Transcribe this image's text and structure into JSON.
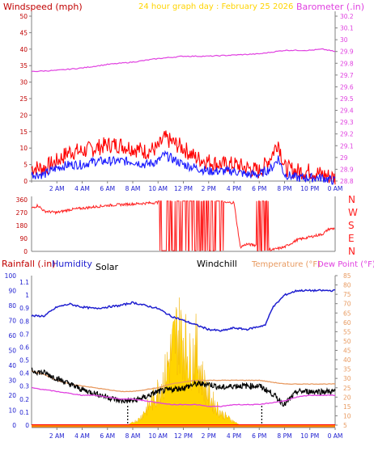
{
  "header": {
    "windspeed_label": "Windspeed (mph)",
    "title": "24 hour graph day : February 25 2026",
    "barometer_label": "Barometer (.in)"
  },
  "lower_header": {
    "rainfall_label": "Rainfall (.in)",
    "humidity_label": "Humidity",
    "solar_label": "Solar",
    "windchill_label": "Windchill",
    "temperature_label": "Temperature (°F)",
    "dewpoint_label": "Dew Point (°F)"
  },
  "colors": {
    "windspeed": "#ff0000",
    "windspeed_avg": "#1a1aff",
    "barometer": "#e040e0",
    "title": "#ffd400",
    "direction": "#ff2020",
    "rainfall": "#ff0000",
    "humidity": "#2020d0",
    "solar": "#ffd400",
    "windchill": "#000000",
    "temperature": "#e89a60",
    "dewpoint": "#e040e0",
    "axis": "#808080"
  },
  "chart_data": [
    {
      "type": "line",
      "panel": "wind",
      "x_ticks": [
        "2 AM",
        "4 AM",
        "6 AM",
        "8 AM",
        "10 AM",
        "12 PM",
        "2 PM",
        "4 PM",
        "6 PM",
        "8 PM",
        "10 PM",
        "0 AM"
      ],
      "y_left_ticks": [
        "0",
        "5",
        "10",
        "15",
        "20",
        "25",
        "30",
        "35",
        "40",
        "45",
        "50"
      ],
      "y_right_ticks": [
        "28.8",
        "28.9",
        "29",
        "29.1",
        "29.2",
        "29.3",
        "29.4",
        "29.5",
        "29.6",
        "29.7",
        "29.8",
        "29.9",
        "30",
        "30.1",
        "30.2"
      ],
      "ylim_left": [
        0,
        50
      ],
      "ylim_right": [
        28.8,
        30.2
      ],
      "xlim_hours": [
        0,
        24
      ],
      "series": [
        {
          "axis": "left",
          "color_key": "windspeed",
          "x": [
            0,
            1,
            2,
            3,
            4,
            5,
            6,
            7,
            8,
            9,
            10,
            10.5,
            11,
            12,
            13,
            14,
            15,
            16,
            17,
            18,
            18.5,
            19,
            19.5,
            20,
            21,
            22,
            23,
            24
          ],
          "y": [
            4,
            4,
            6,
            9,
            9,
            10,
            11,
            11,
            10,
            9,
            10,
            13,
            12,
            10,
            7,
            6,
            5,
            5,
            4,
            3,
            5,
            8,
            12,
            4,
            3,
            3,
            2,
            1
          ]
        },
        {
          "axis": "left",
          "color_key": "windspeed_avg",
          "x": [
            0,
            1,
            2,
            3,
            4,
            5,
            6,
            7,
            8,
            9,
            10,
            10.5,
            11,
            12,
            13,
            14,
            15,
            16,
            17,
            18,
            18.5,
            19,
            19.5,
            20,
            21,
            22,
            23,
            24
          ],
          "y": [
            2,
            2,
            4,
            5,
            5,
            6,
            6,
            6,
            6,
            5,
            6,
            8,
            7,
            5,
            4,
            3,
            3,
            3,
            2,
            2,
            3,
            4,
            7,
            2,
            1,
            1,
            1,
            0
          ]
        },
        {
          "axis": "right",
          "color_key": "barometer",
          "x": [
            0,
            2,
            4,
            6,
            8,
            10,
            12,
            14,
            16,
            18,
            20,
            22,
            23,
            24
          ],
          "y": [
            29.73,
            29.74,
            29.76,
            29.79,
            29.81,
            29.84,
            29.86,
            29.86,
            29.87,
            29.88,
            29.91,
            29.91,
            29.92,
            29.9
          ]
        }
      ]
    },
    {
      "type": "line",
      "panel": "direction",
      "y_left_ticks": [
        "0",
        "90",
        "180",
        "270",
        "360"
      ],
      "y_right_ticks": [
        "N",
        "E",
        "S",
        "W",
        "N"
      ],
      "ylim": [
        0,
        360
      ],
      "series": [
        {
          "color_key": "direction",
          "x": [
            0,
            0.5,
            1,
            2,
            3,
            4,
            5,
            6,
            7,
            8,
            9,
            10,
            12,
            14,
            16,
            16.5,
            17,
            18,
            19,
            20,
            21,
            22,
            23,
            23.5,
            24
          ],
          "y": [
            300,
            320,
            280,
            270,
            290,
            300,
            310,
            320,
            325,
            330,
            335,
            340,
            340,
            335,
            340,
            30,
            50,
            40,
            10,
            30,
            80,
            100,
            120,
            155,
            160
          ]
        }
      ]
    },
    {
      "type": "line",
      "panel": "weather",
      "y_left_ticks": [
        "0",
        "10",
        "20",
        "30",
        "40",
        "50",
        "60",
        "70",
        "80",
        "90",
        "100"
      ],
      "y_rain_ticks": [
        "0",
        "0.1",
        "0.2",
        "0.3",
        "0.4",
        "0.5",
        "0.6",
        "0.7",
        "0.8",
        "0.9",
        "1",
        "1.1"
      ],
      "y_right_ticks": [
        "5",
        "10",
        "15",
        "20",
        "25",
        "30",
        "35",
        "40",
        "45",
        "50",
        "55",
        "60",
        "65",
        "70",
        "75",
        "80",
        "85"
      ],
      "ylim_left": [
        0,
        100
      ],
      "ylim_rain": [
        0,
        1.15
      ],
      "ylim_right": [
        5,
        85
      ],
      "series": [
        {
          "axis": "left",
          "color_key": "humidity",
          "x": [
            0,
            1,
            2,
            3,
            4,
            5,
            6,
            7,
            8,
            9,
            10,
            11,
            12,
            13,
            14,
            15,
            16,
            17,
            18,
            18.5,
            19,
            20,
            21,
            22,
            23,
            24
          ],
          "y": [
            73,
            73,
            79,
            81,
            79,
            78,
            79,
            80,
            82,
            80,
            78,
            73,
            70,
            67,
            64,
            63,
            65,
            64,
            66,
            67,
            78,
            87,
            90,
            90,
            90,
            90
          ]
        },
        {
          "axis": "right",
          "color_key": "temperature",
          "x": [
            0,
            1,
            2,
            3,
            4,
            5,
            6,
            7,
            8,
            9,
            10,
            11,
            12,
            13,
            14,
            15,
            16,
            17,
            18,
            19,
            20,
            21,
            22,
            23,
            24
          ],
          "y": [
            34,
            32,
            29,
            27,
            26,
            25,
            24,
            23,
            23,
            24,
            25,
            27,
            28,
            29,
            29,
            29,
            29,
            29,
            29,
            28,
            27,
            27,
            27,
            27,
            27
          ]
        },
        {
          "axis": "right",
          "color_key": "windchill",
          "x": [
            0,
            1,
            2,
            3,
            4,
            5,
            6,
            7,
            8,
            9,
            10,
            11,
            12,
            13,
            14,
            15,
            16,
            17,
            18,
            19,
            20,
            21,
            22,
            23,
            24
          ],
          "y": [
            34,
            33,
            30,
            27,
            24,
            22,
            20,
            18,
            18,
            20,
            23,
            24,
            25,
            27,
            27,
            25,
            26,
            26,
            26,
            22,
            16,
            23,
            23,
            23,
            23
          ]
        },
        {
          "axis": "right",
          "color_key": "dewpoint",
          "x": [
            0,
            1,
            2,
            3,
            4,
            5,
            6,
            7,
            8,
            9,
            10,
            11,
            12,
            13,
            14,
            15,
            16,
            17,
            18,
            19,
            20,
            21,
            22,
            23,
            24
          ],
          "y": [
            25,
            24,
            23,
            22,
            21,
            21,
            20,
            19,
            19,
            18,
            17,
            16,
            16,
            16,
            15,
            15,
            16,
            16,
            16,
            17,
            18,
            20,
            21,
            21,
            21
          ]
        },
        {
          "axis": "solar",
          "color_key": "solar",
          "x": [
            7.6,
            8.5,
            9.5,
            10.5,
            11,
            11.5,
            12,
            12.5,
            13,
            13.5,
            14,
            15,
            16,
            16.5
          ],
          "y": [
            0,
            5,
            20,
            40,
            60,
            80,
            75,
            55,
            65,
            40,
            25,
            10,
            3,
            0
          ]
        },
        {
          "axis": "rain",
          "color_key": "rainfall",
          "x": [
            0,
            24
          ],
          "y": [
            0,
            0
          ]
        }
      ]
    }
  ]
}
